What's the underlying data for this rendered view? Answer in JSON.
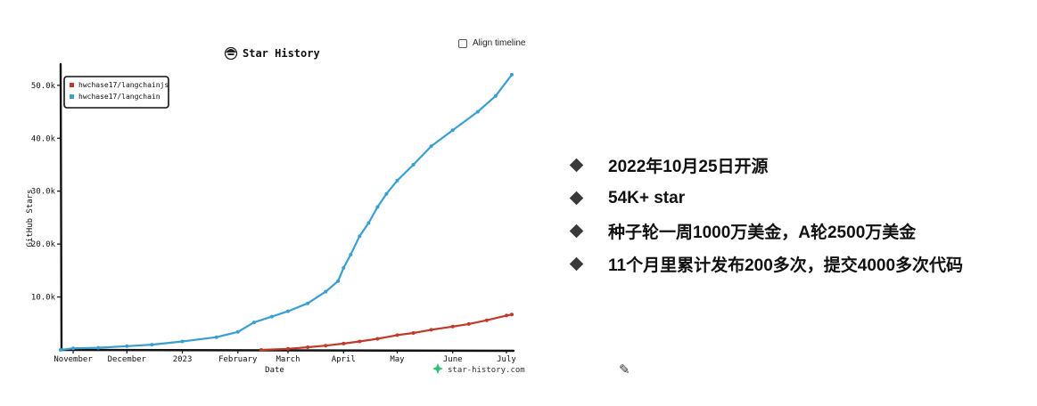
{
  "chart_data": {
    "type": "line",
    "title": "Star History",
    "xlabel": "Date",
    "ylabel": "GitHub Stars",
    "x_ticks": [
      "November",
      "December",
      "2023",
      "February",
      "March",
      "April",
      "May",
      "June",
      "July"
    ],
    "x_tick_dates": [
      "2022-11-01",
      "2022-12-01",
      "2023-01-01",
      "2023-02-01",
      "2023-03-01",
      "2023-04-01",
      "2023-05-01",
      "2023-06-01",
      "2023-07-01"
    ],
    "y_ticks": [
      "10.0k",
      "20.0k",
      "30.0k",
      "40.0k",
      "50.0k"
    ],
    "y_tick_values": [
      10000,
      20000,
      30000,
      40000,
      50000
    ],
    "xlim": [
      "2022-10-25",
      "2023-07-04"
    ],
    "ylim": [
      0,
      53000
    ],
    "grid": false,
    "legend_position": "top-left",
    "watermark": "star-history.com",
    "series": [
      {
        "name": "hwchase17/langchainjs",
        "color": "#c0392b",
        "points": [
          [
            "2023-02-14",
            0
          ],
          [
            "2023-03-01",
            200
          ],
          [
            "2023-03-12",
            500
          ],
          [
            "2023-03-22",
            800
          ],
          [
            "2023-04-01",
            1200
          ],
          [
            "2023-04-10",
            1600
          ],
          [
            "2023-04-20",
            2100
          ],
          [
            "2023-05-01",
            2800
          ],
          [
            "2023-05-10",
            3200
          ],
          [
            "2023-05-20",
            3800
          ],
          [
            "2023-06-01",
            4400
          ],
          [
            "2023-06-10",
            4900
          ],
          [
            "2023-06-20",
            5600
          ],
          [
            "2023-07-01",
            6500
          ],
          [
            "2023-07-04",
            6700
          ]
        ]
      },
      {
        "name": "hwchase17/langchain",
        "color": "#3a9fd0",
        "points": [
          [
            "2022-10-25",
            0
          ],
          [
            "2022-11-01",
            300
          ],
          [
            "2022-11-15",
            400
          ],
          [
            "2022-12-01",
            700
          ],
          [
            "2022-12-15",
            1000
          ],
          [
            "2023-01-01",
            1600
          ],
          [
            "2023-01-20",
            2400
          ],
          [
            "2023-02-01",
            3400
          ],
          [
            "2023-02-10",
            5200
          ],
          [
            "2023-02-20",
            6300
          ],
          [
            "2023-03-01",
            7300
          ],
          [
            "2023-03-12",
            8800
          ],
          [
            "2023-03-22",
            11000
          ],
          [
            "2023-03-29",
            13000
          ],
          [
            "2023-04-01",
            15500
          ],
          [
            "2023-04-05",
            18000
          ],
          [
            "2023-04-10",
            21500
          ],
          [
            "2023-04-15",
            24000
          ],
          [
            "2023-04-20",
            27000
          ],
          [
            "2023-04-25",
            29500
          ],
          [
            "2023-05-01",
            32000
          ],
          [
            "2023-05-10",
            35000
          ],
          [
            "2023-05-20",
            38500
          ],
          [
            "2023-06-01",
            41500
          ],
          [
            "2023-06-15",
            45000
          ],
          [
            "2023-06-25",
            48000
          ],
          [
            "2023-07-04",
            52000
          ]
        ]
      }
    ]
  },
  "align_timeline": {
    "label": "Align timeline",
    "checked": false
  },
  "bullets": [
    "2022年10月25日开源",
    "54K+ star",
    "种子轮一周1000万美金，A轮2500万美金",
    "11个月里累计发布200多次，提交4000多次代码"
  ]
}
